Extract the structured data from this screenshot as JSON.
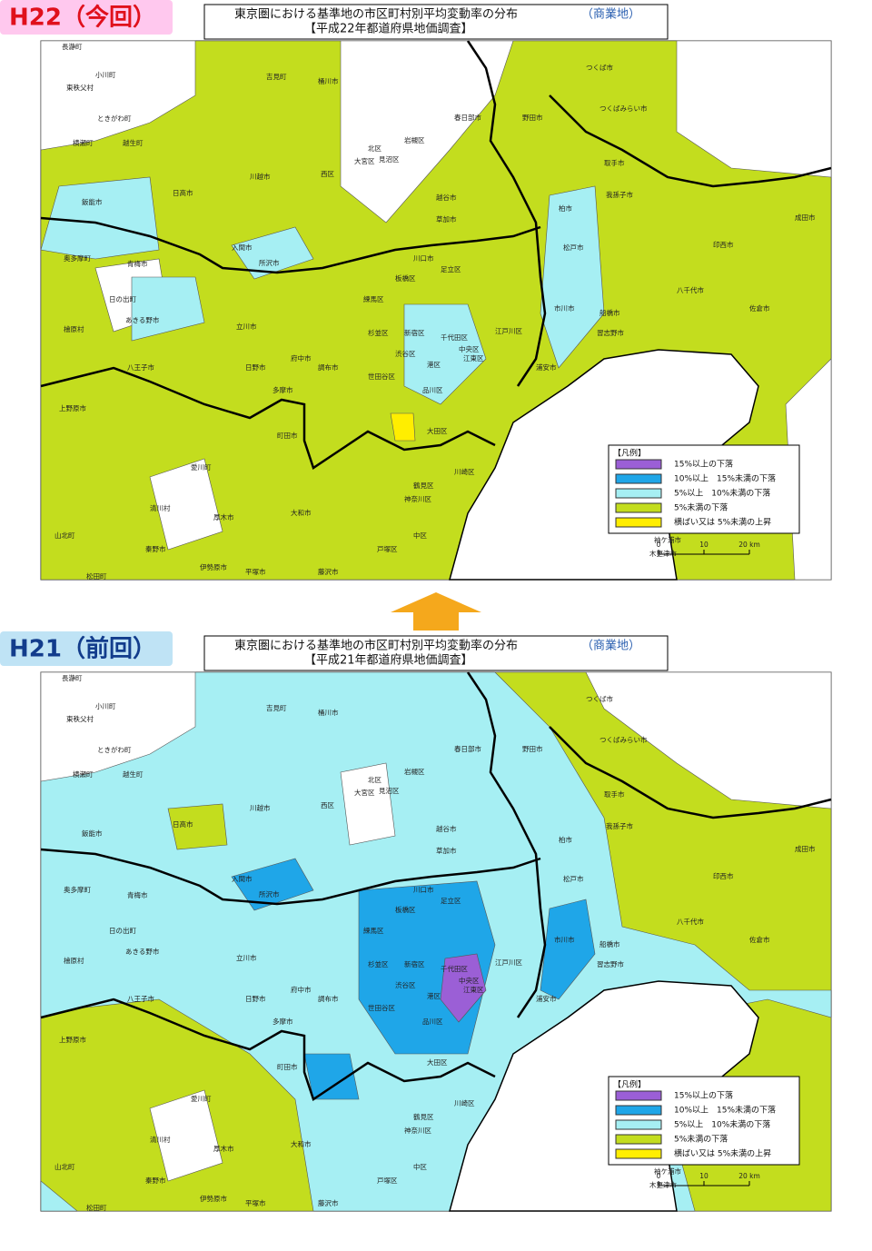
{
  "panels": [
    {
      "tag": "H22（今回）",
      "title": "東京圏における基準地の市区町村別平均変動率の分布",
      "title_note": "（商業地）",
      "subtitle": "【平成22年都道府県地価調査】",
      "legend": {
        "title": "【凡例】",
        "items": [
          {
            "label": "15%以上の下落",
            "color": "#9b5fd6"
          },
          {
            "label": "10%以上　15%未満の下落",
            "color": "#1fa6e8"
          },
          {
            "label": "5%以上　10%未満の下落",
            "color": "#a6eff3"
          },
          {
            "label": "5%未満の下落",
            "color": "#c3dd1e"
          },
          {
            "label": "横ばい又は 5%未満の上昇",
            "color": "#ffee00"
          }
        ]
      },
      "scale": [
        "0",
        "10",
        "20 km"
      ],
      "places": [
        "長瀞町",
        "小川町",
        "東秩父村",
        "ときがわ町",
        "横瀬町",
        "越生町",
        "飯能市",
        "日高市",
        "青梅市",
        "奥多摩町",
        "日の出町",
        "あきる野市",
        "檜原村",
        "八王子市",
        "上野原市",
        "川越市",
        "吉見町",
        "桶川市",
        "西区",
        "北区",
        "見沼区",
        "大宮区",
        "岩槻区",
        "春日部市",
        "越谷市",
        "草加市",
        "川口市",
        "足立区",
        "所沢市",
        "入間市",
        "練馬区",
        "板橋区",
        "杉並区",
        "世田谷区",
        "渋谷区",
        "新宿区",
        "千代田区",
        "中央区",
        "港区",
        "品川区",
        "大田区",
        "江東区",
        "江戸川区",
        "浦安市",
        "市川市",
        "船橋市",
        "習志野市",
        "松戸市",
        "柏市",
        "野田市",
        "つくば市",
        "つくばみらい市",
        "取手市",
        "我孫子市",
        "成田市",
        "佐倉市",
        "八千代市",
        "印西市",
        "木更津市",
        "袖ケ浦市",
        "川崎区",
        "鶴見区",
        "神奈川区",
        "中区",
        "戸塚区",
        "藤沢市",
        "平塚市",
        "厚木市",
        "大和市",
        "町田市",
        "愛川町",
        "清川村",
        "山北町",
        "松田町",
        "秦野市",
        "伊勢原市",
        "多摩市",
        "府中市",
        "調布市",
        "日野市",
        "立川市"
      ]
    },
    {
      "tag": "H21（前回）",
      "title": "東京圏における基準地の市区町村別平均変動率の分布",
      "title_note": "（商業地）",
      "subtitle": "【平成21年都道府県地価調査】",
      "legend": {
        "title": "【凡例】",
        "items": [
          {
            "label": "15%以上の下落",
            "color": "#9b5fd6"
          },
          {
            "label": "10%以上　15%未満の下落",
            "color": "#1fa6e8"
          },
          {
            "label": "5%以上　10%未満の下落",
            "color": "#a6eff3"
          },
          {
            "label": "5%未満の下落",
            "color": "#c3dd1e"
          },
          {
            "label": "横ばい又は 5%未満の上昇",
            "color": "#ffee00"
          }
        ]
      },
      "scale": [
        "0",
        "10",
        "20 km"
      ],
      "places": [
        "長瀞町",
        "小川町",
        "東秩父村",
        "ときがわ町",
        "横瀬町",
        "越生町",
        "飯能市",
        "日高市",
        "青梅市",
        "奥多摩町",
        "日の出町",
        "あきる野市",
        "檜原村",
        "八王子市",
        "上野原市",
        "川越市",
        "吉見町",
        "桶川市",
        "西区",
        "北区",
        "見沼区",
        "大宮区",
        "岩槻区",
        "春日部市",
        "越谷市",
        "草加市",
        "川口市",
        "足立区",
        "所沢市",
        "入間市",
        "練馬区",
        "板橋区",
        "杉並区",
        "世田谷区",
        "渋谷区",
        "新宿区",
        "千代田区",
        "中央区",
        "港区",
        "品川区",
        "大田区",
        "江東区",
        "江戸川区",
        "浦安市",
        "市川市",
        "船橋市",
        "習志野市",
        "松戸市",
        "柏市",
        "野田市",
        "つくば市",
        "つくばみらい市",
        "取手市",
        "我孫子市",
        "成田市",
        "佐倉市",
        "八千代市",
        "印西市",
        "木更津市",
        "袖ケ浦市",
        "川崎区",
        "鶴見区",
        "神奈川区",
        "中区",
        "戸塚区",
        "藤沢市",
        "平塚市",
        "厚木市",
        "大和市",
        "町田市",
        "愛川町",
        "清川村",
        "山北町",
        "松田町",
        "秦野市",
        "伊勢原市",
        "多摩市",
        "府中市",
        "調布市",
        "日野市",
        "立川市"
      ]
    }
  ]
}
